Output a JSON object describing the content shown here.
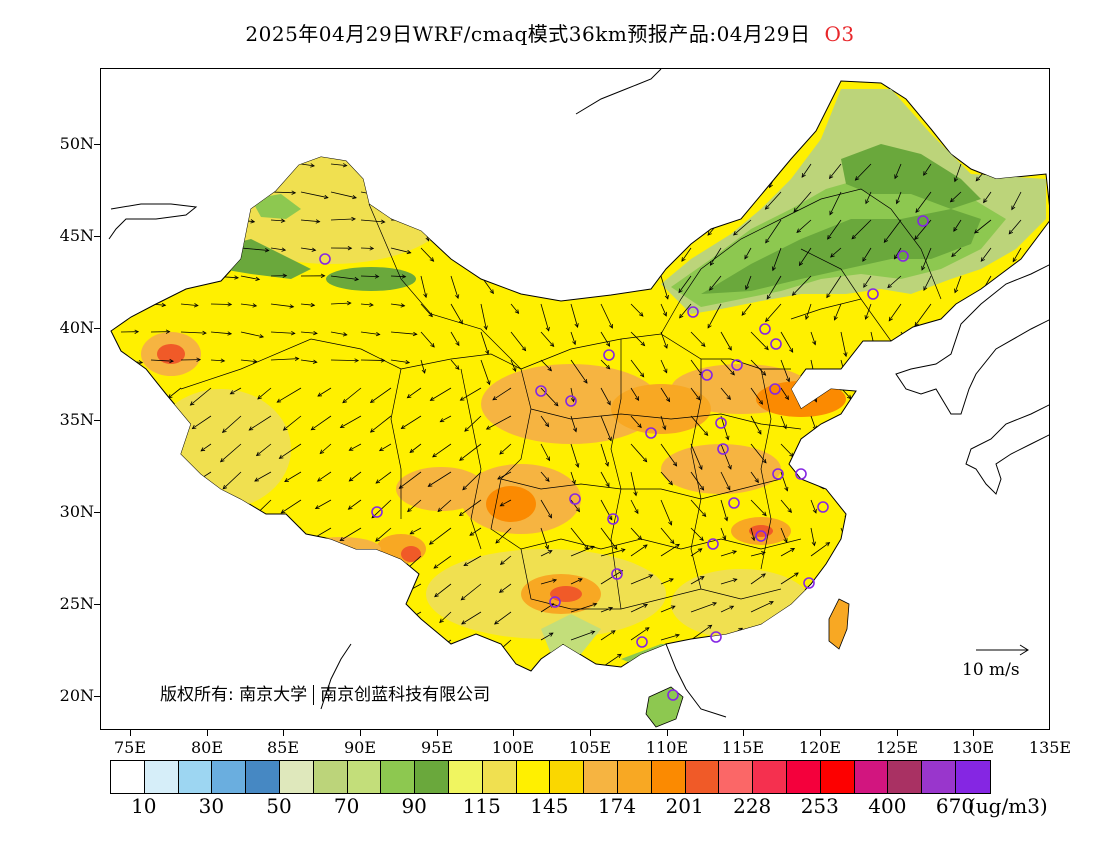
{
  "title": {
    "text": "2025年04月29日WRF/cmaq模式36km预报产品:04月29日",
    "pollutant": "O3",
    "pollutant_color": "#e8262a"
  },
  "map": {
    "lat_labels": [
      "50N",
      "45N",
      "40N",
      "35N",
      "30N",
      "25N",
      "20N"
    ],
    "lon_labels": [
      "75E",
      "80E",
      "85E",
      "90E",
      "95E",
      "100E",
      "105E",
      "110E",
      "115E",
      "120E",
      "125E",
      "130E",
      "135E"
    ],
    "copyright_left": "版权所有: 南京大学",
    "copyright_right": "南京创蓝科技有限公司",
    "ref_vector_label": "10 m/s"
  },
  "colorbar": {
    "colors": [
      "#ffffff",
      "#d6eef9",
      "#9dd6f2",
      "#6aaedf",
      "#4688c3",
      "#dfe8bc",
      "#bcd47a",
      "#c3de7a",
      "#8dc850",
      "#6aa83c",
      "#f0f560",
      "#f0e050",
      "#fff000",
      "#fad700",
      "#f6b441",
      "#f8a823",
      "#fb8a01",
      "#f05a28",
      "#fb6767",
      "#f5304f",
      "#f4003c",
      "#fd0000",
      "#d2157f",
      "#a93163",
      "#9936cc",
      "#8526e3"
    ],
    "labels": [
      "10",
      "30",
      "50",
      "70",
      "90",
      "115",
      "145",
      "174",
      "201",
      "228",
      "253",
      "400",
      "670"
    ],
    "unit": "(ug/m3)"
  }
}
